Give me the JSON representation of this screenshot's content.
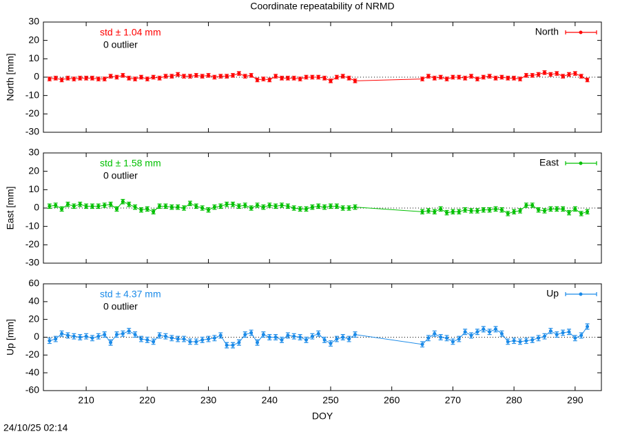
{
  "title": "Coordinate repeatability of NRMD",
  "timestamp": "24/10/25 02:14",
  "chart_data": [
    {
      "type": "line",
      "ylabel": "North [mm]",
      "annotations": [
        "std ± 1.04 mm",
        "0 outlier"
      ],
      "legend": "top right",
      "xlim": [
        203,
        294.3
      ],
      "xticks": [
        210,
        220,
        230,
        240,
        250,
        260,
        270,
        280,
        290
      ],
      "ylim": [
        -30,
        30
      ],
      "yticks": [
        -30,
        -20,
        -10,
        0,
        10,
        20,
        30
      ],
      "x": [
        204,
        205,
        206,
        207,
        208,
        209,
        210,
        211,
        212,
        213,
        214,
        215,
        216,
        217,
        218,
        219,
        220,
        221,
        222,
        223,
        224,
        225,
        226,
        227,
        228,
        229,
        230,
        231,
        232,
        233,
        234,
        235,
        236,
        237,
        238,
        239,
        240,
        241,
        242,
        243,
        244,
        245,
        246,
        247,
        248,
        249,
        250,
        251,
        252,
        253,
        254,
        265,
        266,
        267,
        268,
        269,
        270,
        271,
        272,
        273,
        274,
        275,
        276,
        277,
        278,
        279,
        280,
        281,
        282,
        283,
        284,
        285,
        286,
        287,
        288,
        289,
        290,
        291,
        292
      ],
      "series": [
        {
          "name": "North",
          "color": "#ff0000",
          "error": 1,
          "values": [
            -1,
            -0.5,
            -1.5,
            -0.5,
            -1,
            -0.5,
            -0.5,
            -0.5,
            -1,
            -1,
            0.5,
            0,
            1,
            -0.5,
            -1,
            0,
            -1,
            0,
            -0.5,
            0.5,
            0.5,
            1.5,
            0.5,
            0.5,
            1,
            0.5,
            1,
            0,
            0.5,
            0.5,
            1,
            2,
            0.5,
            1,
            -1.5,
            -1,
            -1.5,
            0.5,
            -0.5,
            -0.5,
            -0.5,
            -1,
            0,
            0,
            0,
            -0.5,
            -2,
            0,
            0.5,
            -0.5,
            -2,
            -1,
            0.5,
            -0.5,
            0,
            -1,
            0,
            0,
            -0.5,
            0.5,
            -1,
            0,
            0.5,
            -0.5,
            0,
            -0.5,
            -0.5,
            -1,
            1,
            1,
            1.5,
            2.5,
            1.5,
            2,
            0.5,
            1.5,
            2,
            0.5,
            -1.5
          ]
        }
      ]
    },
    {
      "type": "line",
      "ylabel": "East [mm]",
      "annotations": [
        "std ± 1.58 mm",
        "0 outlier"
      ],
      "legend": "top right",
      "xlim": [
        203,
        294.3
      ],
      "xticks": [
        210,
        220,
        230,
        240,
        250,
        260,
        270,
        280,
        290
      ],
      "ylim": [
        -30,
        30
      ],
      "yticks": [
        -30,
        -20,
        -10,
        0,
        10,
        20,
        30
      ],
      "x": [
        204,
        205,
        206,
        207,
        208,
        209,
        210,
        211,
        212,
        213,
        214,
        215,
        216,
        217,
        218,
        219,
        220,
        221,
        222,
        223,
        224,
        225,
        226,
        227,
        228,
        229,
        230,
        231,
        232,
        233,
        234,
        235,
        236,
        237,
        238,
        239,
        240,
        241,
        242,
        243,
        244,
        245,
        246,
        247,
        248,
        249,
        250,
        251,
        252,
        253,
        254,
        265,
        266,
        267,
        268,
        269,
        270,
        271,
        272,
        273,
        274,
        275,
        276,
        277,
        278,
        279,
        280,
        281,
        282,
        283,
        284,
        285,
        286,
        287,
        288,
        289,
        290,
        291,
        292
      ],
      "series": [
        {
          "name": "East",
          "color": "#00c000",
          "error": 1.2,
          "values": [
            1,
            1.5,
            -0.5,
            2,
            1,
            2,
            1,
            1,
            1,
            1.5,
            2,
            -0.5,
            3.5,
            2,
            0.5,
            -1,
            -0.5,
            -2,
            1,
            1,
            0.5,
            0.5,
            0,
            2.5,
            1,
            0,
            -1,
            0.5,
            1,
            2,
            2,
            1,
            1.5,
            0,
            1.5,
            0.5,
            1.5,
            1,
            1.5,
            1,
            0,
            -0.5,
            -0.5,
            0.5,
            1,
            0.5,
            1,
            1,
            0,
            0,
            0.5,
            -2,
            -1.5,
            -2,
            -0.5,
            -2.5,
            -2,
            -2,
            -1,
            -1.5,
            -1.5,
            -1,
            -1,
            -0.5,
            -1,
            -3,
            -2,
            -1.5,
            1.5,
            1.5,
            -1,
            -1.5,
            -0.5,
            -0.5,
            -0.5,
            -2.5,
            -0.5,
            -3,
            -2
          ]
        }
      ]
    },
    {
      "type": "line",
      "ylabel": "Up [mm]",
      "xlabel": "DOY",
      "annotations": [
        "std ± 4.37 mm",
        "0 outlier"
      ],
      "legend": "top right",
      "xlim": [
        203,
        294.3
      ],
      "xticks": [
        210,
        220,
        230,
        240,
        250,
        260,
        270,
        280,
        290
      ],
      "ylim": [
        -60,
        60
      ],
      "yticks": [
        -60,
        -40,
        -20,
        0,
        20,
        40,
        60
      ],
      "x": [
        204,
        205,
        206,
        207,
        208,
        209,
        210,
        211,
        212,
        213,
        214,
        215,
        216,
        217,
        218,
        219,
        220,
        221,
        222,
        223,
        224,
        225,
        226,
        227,
        228,
        229,
        230,
        231,
        232,
        233,
        234,
        235,
        236,
        237,
        238,
        239,
        240,
        241,
        242,
        243,
        244,
        245,
        246,
        247,
        248,
        249,
        250,
        251,
        252,
        253,
        254,
        265,
        266,
        267,
        268,
        269,
        270,
        271,
        272,
        273,
        274,
        275,
        276,
        277,
        278,
        279,
        280,
        281,
        282,
        283,
        284,
        285,
        286,
        287,
        288,
        289,
        290,
        291,
        292
      ],
      "series": [
        {
          "name": "Up",
          "color": "#1a8ae8",
          "error": 3,
          "values": [
            -4,
            -2,
            4,
            2,
            1,
            0,
            1,
            -1,
            1,
            3,
            -6,
            3,
            4,
            7,
            3,
            -2,
            -3,
            -5,
            2,
            1,
            -1,
            -2,
            -2,
            -5,
            -5,
            -3,
            -2,
            -1,
            2,
            -9,
            -9,
            -6,
            3,
            5,
            -6,
            3,
            0,
            0,
            -3,
            2,
            1,
            0,
            -3,
            1,
            4,
            -3,
            -7,
            -2,
            0,
            -2,
            3,
            -8,
            -1,
            4,
            0,
            -1,
            -5,
            -2,
            6,
            2,
            6,
            9,
            6,
            9,
            4,
            -5,
            -4,
            -5,
            -4,
            -3,
            -1,
            1,
            7,
            3,
            5,
            6,
            -1,
            2,
            12
          ]
        }
      ]
    }
  ]
}
